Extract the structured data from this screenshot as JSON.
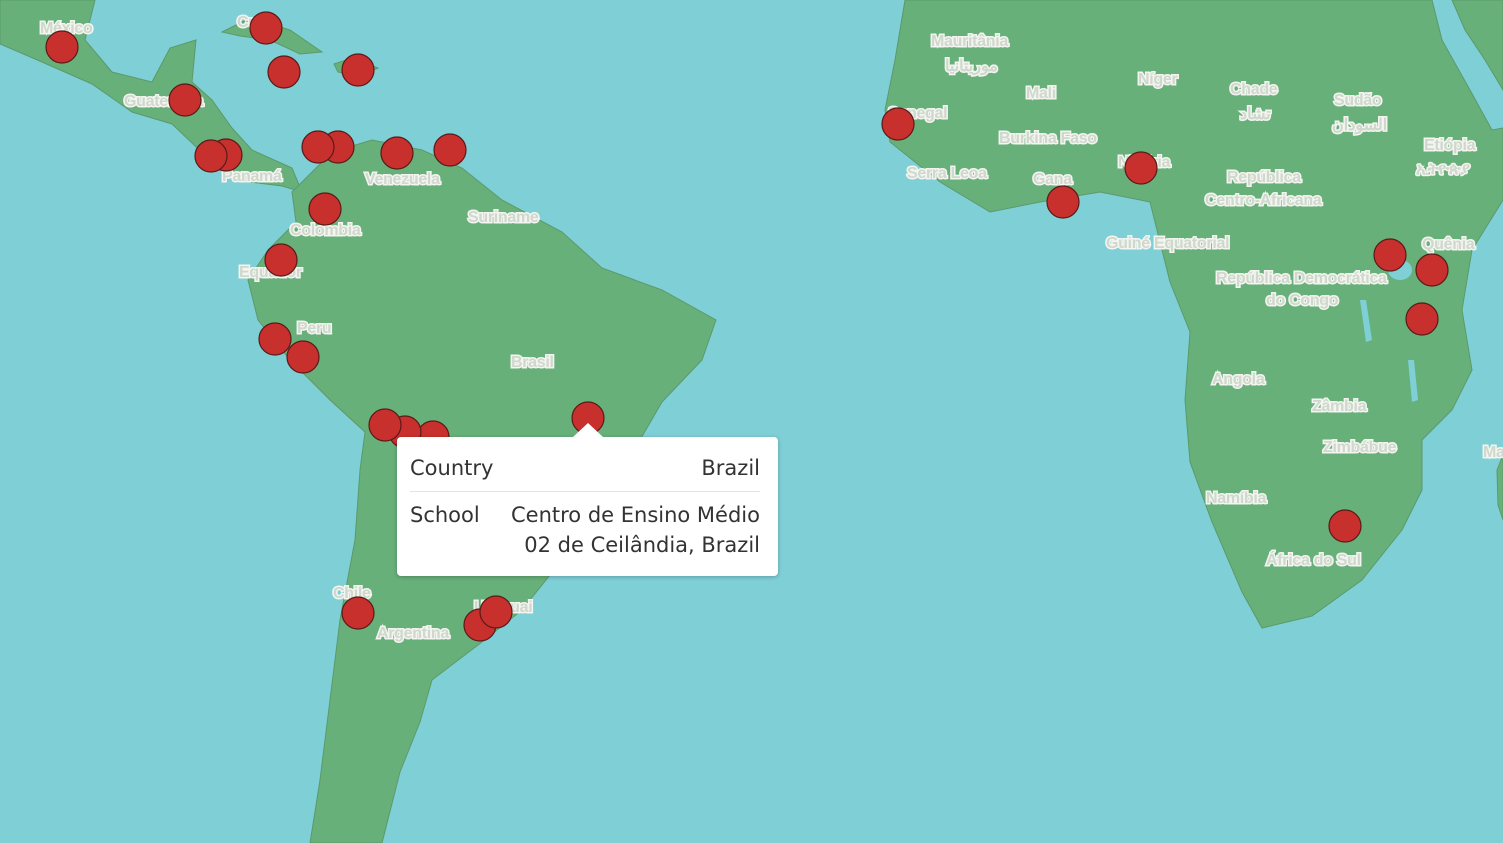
{
  "colors": {
    "water": "#7fcfd7",
    "land": "#68b07a",
    "border": "#5a9a6a",
    "marker": "#c8302e",
    "marker_outline": "#5a1a18"
  },
  "labels": [
    {
      "id": "mexico",
      "text": "México"
    },
    {
      "id": "cuba",
      "text": "Cuba"
    },
    {
      "id": "guatemala",
      "text": "Guatemala"
    },
    {
      "id": "panama",
      "text": "Panamá"
    },
    {
      "id": "venezuela",
      "text": "Venezuela"
    },
    {
      "id": "colombia",
      "text": "Colombia"
    },
    {
      "id": "suriname",
      "text": "Suriname"
    },
    {
      "id": "equador",
      "text": "Equador"
    },
    {
      "id": "peru",
      "text": "Peru"
    },
    {
      "id": "brasil",
      "text": "Brasil"
    },
    {
      "id": "chile",
      "text": "Chile"
    },
    {
      "id": "argentina",
      "text": "Argentina"
    },
    {
      "id": "uruguai",
      "text": "Uruguai"
    },
    {
      "id": "mauritania",
      "text": "Mauritânia"
    },
    {
      "id": "mauritania_ar",
      "text": "موريتانيا"
    },
    {
      "id": "mali",
      "text": "Mali"
    },
    {
      "id": "niger",
      "text": "Níger"
    },
    {
      "id": "chade",
      "text": "Chade"
    },
    {
      "id": "chade_ar",
      "text": "تشاد"
    },
    {
      "id": "sudao",
      "text": "Sudão"
    },
    {
      "id": "sudao_ar",
      "text": "السودان"
    },
    {
      "id": "etiopia",
      "text": "Etiópia"
    },
    {
      "id": "etiopia_am",
      "text": "ኢትዮጵያ"
    },
    {
      "id": "senegal",
      "text": "Senegal"
    },
    {
      "id": "burkina",
      "text": "Burkina Faso"
    },
    {
      "id": "nigeria",
      "text": "Nigéria"
    },
    {
      "id": "serra_leoa",
      "text": "Serra Leoa"
    },
    {
      "id": "gana",
      "text": "Gana"
    },
    {
      "id": "rca1",
      "text": "República"
    },
    {
      "id": "rca2",
      "text": "Centro-Africana"
    },
    {
      "id": "guine_eq",
      "text": "Guiné Equatorial"
    },
    {
      "id": "quenia",
      "text": "Quênia"
    },
    {
      "id": "rdc1",
      "text": "República Democrática"
    },
    {
      "id": "rdc2",
      "text": "do Congo"
    },
    {
      "id": "angola",
      "text": "Angola"
    },
    {
      "id": "zambia",
      "text": "Zâmbia"
    },
    {
      "id": "zimbabue",
      "text": "Zimbábue"
    },
    {
      "id": "namibia",
      "text": "Namíbia"
    },
    {
      "id": "africa_sul",
      "text": "África do Sul"
    },
    {
      "id": "madagascar",
      "text": "Ma"
    }
  ],
  "tooltip": {
    "country_label": "Country",
    "country_value": "Brazil",
    "school_label": "School",
    "school_value": "Centro de Ensino Médio 02 de Ceilândia, Brazil",
    "school_line1": "Centro de Ensino Médio",
    "school_line2": "02 de Ceilândia, Brazil"
  }
}
